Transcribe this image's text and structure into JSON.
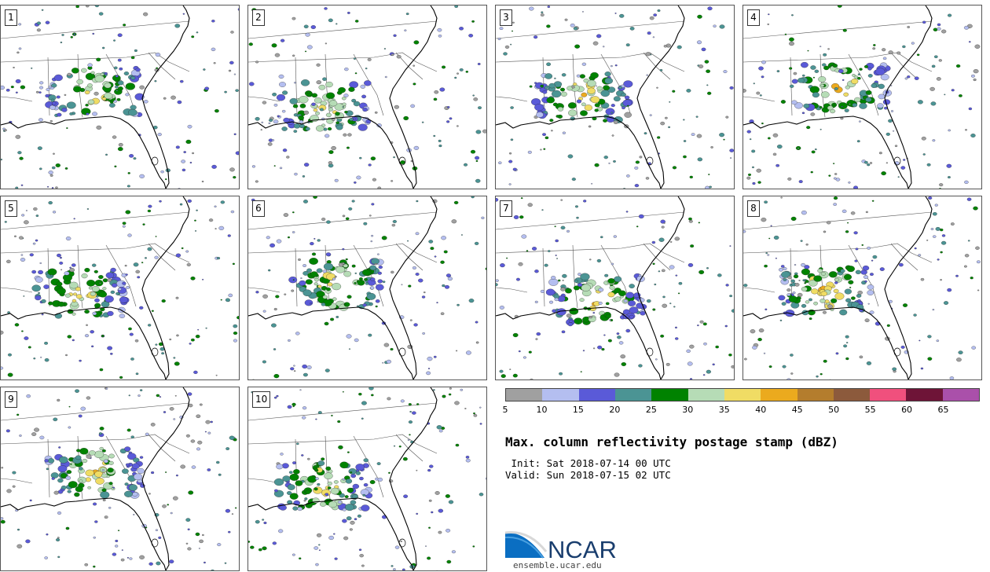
{
  "panels": [
    {
      "label": "1"
    },
    {
      "label": "2"
    },
    {
      "label": "3"
    },
    {
      "label": "4"
    },
    {
      "label": "5"
    },
    {
      "label": "6"
    },
    {
      "label": "7"
    },
    {
      "label": "8"
    },
    {
      "label": "9"
    },
    {
      "label": "10"
    }
  ],
  "colorbar": {
    "colors": [
      "#a0a0a0",
      "#b4bef0",
      "#5a5ad8",
      "#4b9494",
      "#008200",
      "#b6dcb6",
      "#f0dc64",
      "#ebaa1e",
      "#b47d2d",
      "#8c5a3c",
      "#f0507d",
      "#6e1437",
      "#aa50aa"
    ],
    "ticks": [
      "5",
      "10",
      "15",
      "20",
      "25",
      "30",
      "35",
      "40",
      "45",
      "50",
      "55",
      "60",
      "65"
    ]
  },
  "title": "Max. column reflectivity postage stamp (dBZ)",
  "init": " Init: Sat 2018-07-14 00 UTC",
  "valid": "Valid: Sun 2018-07-15 02 UTC",
  "logo": {
    "text": "NCAR",
    "url": "ensemble.ucar.edu"
  }
}
